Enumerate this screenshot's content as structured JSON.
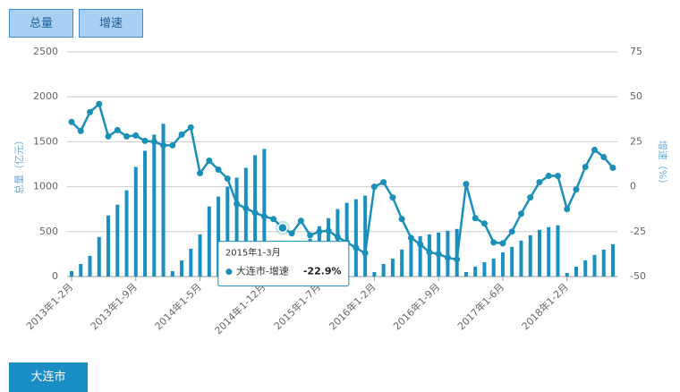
{
  "buttons": [
    "总量",
    "增速"
  ],
  "tab": "大连市",
  "chart_data": {
    "type": "bar-line",
    "ylabel": "总量（亿元）",
    "y2label": "增速（%）",
    "categories": [
      "2013年1-2月",
      null,
      null,
      null,
      null,
      null,
      null,
      "2013年1-9月",
      null,
      null,
      null,
      null,
      null,
      null,
      "2014年1-5月",
      null,
      null,
      null,
      null,
      null,
      null,
      "2014年1-12月",
      null,
      null,
      null,
      null,
      null,
      "2015年1-7月",
      null,
      null,
      null,
      null,
      null,
      "2016年1-2月",
      null,
      null,
      null,
      null,
      null,
      null,
      "2016年1-9月",
      null,
      null,
      null,
      null,
      null,
      null,
      "2017年1-6月",
      null,
      null,
      null,
      null,
      null,
      null,
      "2018年1-2月",
      null,
      null,
      null,
      null,
      null
    ],
    "series": [
      {
        "color": "#1a8fc2",
        "axis": "y",
        "values": [
          60,
          140,
          230,
          440,
          680,
          800,
          960,
          1220,
          1400,
          1580,
          1700,
          60,
          180,
          310,
          470,
          780,
          890,
          1000,
          1100,
          1210,
          1350,
          1420,
          80,
          150,
          230,
          330,
          420,
          560,
          650,
          750,
          820,
          860,
          900,
          50,
          140,
          200,
          300,
          400,
          450,
          470,
          490,
          510,
          530,
          50,
          110,
          160,
          200,
          270,
          330,
          400,
          460,
          520,
          550,
          570,
          40,
          110,
          180,
          240,
          300,
          360
        ]
      },
      {
        "name": "大连市-增速",
        "color": "#1a8fb8",
        "axis": "y2",
        "values": [
          36,
          31,
          41.5,
          46,
          28,
          31.5,
          28,
          28.5,
          25.5,
          25,
          23,
          23,
          29,
          33,
          7.5,
          14.5,
          9.5,
          4.5,
          -9.5,
          -12,
          -14.5,
          -16.5,
          -18,
          -22.9,
          -26,
          -19,
          -27,
          -25,
          -24.5,
          -28,
          -31,
          -34,
          -37,
          0,
          2.5,
          -6,
          -18,
          -28.5,
          -32,
          -36.5,
          -37.5,
          -39.5,
          -40.5,
          1.5,
          -17.5,
          -20.5,
          -31,
          -31.5,
          -25,
          -15,
          -6,
          2.5,
          6,
          6,
          -12.5,
          -1.5,
          11,
          20.5,
          16.5,
          10.5
        ]
      }
    ],
    "ylim": [
      0,
      2500
    ],
    "yticks": [
      0,
      500,
      1000,
      1500,
      2000,
      2500
    ],
    "y2lim": [
      -50,
      75
    ],
    "y2ticks": [
      -50,
      -25,
      0,
      25,
      50,
      75
    ],
    "grid": true,
    "tooltip": {
      "title": "2015年1-3月",
      "label": "大连市-增速",
      "value_label": "-22.9%"
    }
  }
}
